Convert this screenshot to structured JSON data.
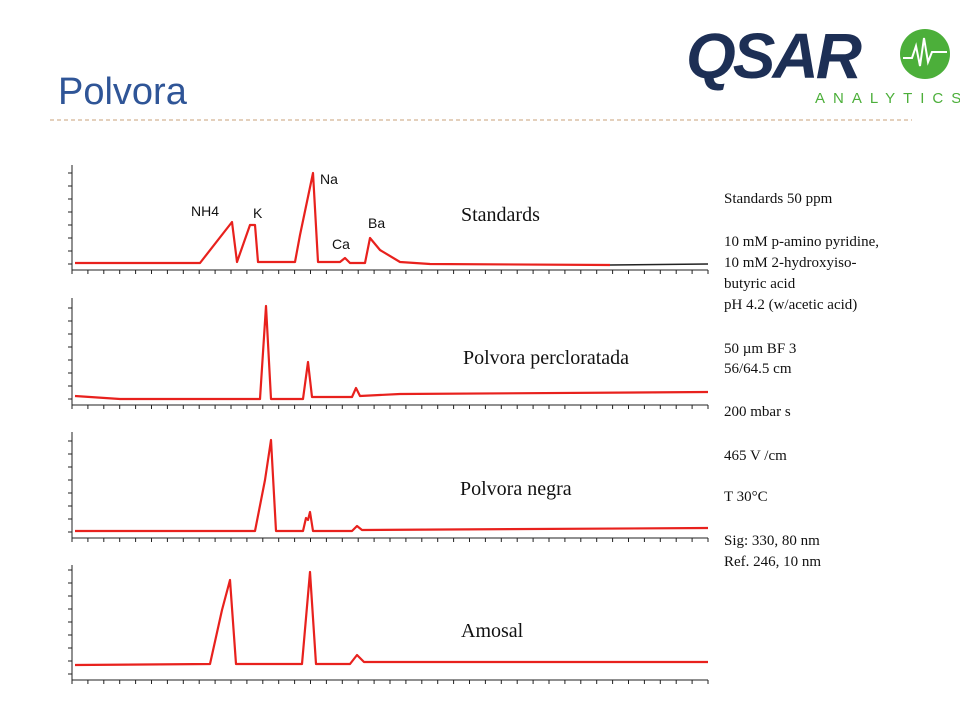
{
  "header": {
    "title": "Polvora",
    "logo": {
      "wordmark": "QSAR",
      "tagline": "ANALYTICS"
    }
  },
  "panels": [
    {
      "label": "Standards",
      "peaks": [
        "NH4",
        "K",
        "Na",
        "Ca",
        "Ba"
      ]
    },
    {
      "label": "Polvora percloratada"
    },
    {
      "label": "Polvora negra"
    },
    {
      "label": "Amosal"
    }
  ],
  "conditions": [
    "Standards 50 ppm",
    "10 mM p-amino pyridine,",
    "10 mM 2-hydroxyiso-",
    "butyric acid",
    "pH 4.2 (w/acetic acid)",
    "50 µm BF 3",
    "56/64.5 cm",
    "200 mbar s",
    "465 V /cm",
    "T  30°C",
    "Sig: 330, 80 nm",
    "Ref. 246, 10 nm"
  ]
}
